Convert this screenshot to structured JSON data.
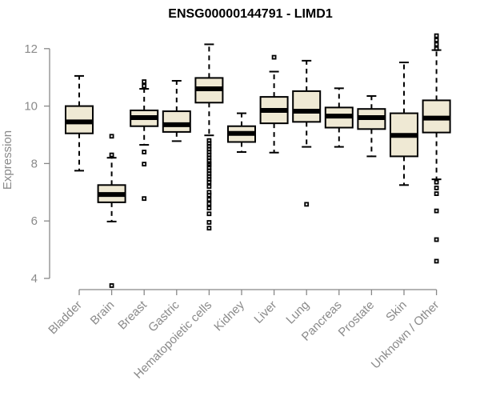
{
  "chart_data": {
    "type": "box",
    "title": "ENSG00000144791 - LIMD1",
    "xlabel": "",
    "ylabel": "Expression",
    "ylim": [
      3.6,
      12.4
    ],
    "yticks": [
      4,
      6,
      8,
      10,
      12
    ],
    "categories": [
      "Bladder",
      "Brain",
      "Breast",
      "Gastric",
      "Hematopoietic cells",
      "Kidney",
      "Liver",
      "Lung",
      "Pancreas",
      "Prostate",
      "Skin",
      "Unknown / Other"
    ],
    "series": [
      {
        "category": "Bladder",
        "whisker_low": 7.75,
        "q1": 9.05,
        "median": 9.45,
        "q3": 10.0,
        "whisker_high": 11.05,
        "outliers": []
      },
      {
        "category": "Brain",
        "whisker_low": 5.98,
        "q1": 6.65,
        "median": 6.92,
        "q3": 7.25,
        "whisker_high": 8.2,
        "outliers": [
          3.75,
          8.3,
          8.95
        ]
      },
      {
        "category": "Breast",
        "whisker_low": 8.65,
        "q1": 9.3,
        "median": 9.6,
        "q3": 9.85,
        "whisker_high": 10.6,
        "outliers": [
          6.78,
          7.98,
          8.4,
          10.7,
          10.85
        ]
      },
      {
        "category": "Gastric",
        "whisker_low": 8.78,
        "q1": 9.1,
        "median": 9.35,
        "q3": 9.82,
        "whisker_high": 10.88,
        "outliers": []
      },
      {
        "category": "Hematopoietic cells",
        "whisker_low": 8.98,
        "q1": 10.12,
        "median": 10.6,
        "q3": 10.98,
        "whisker_high": 12.15,
        "outliers": [
          5.75,
          5.95,
          6.25,
          6.45,
          6.6,
          6.75,
          6.9,
          7.0,
          7.2,
          7.35,
          7.45,
          7.55,
          7.65,
          7.75,
          7.85,
          7.95,
          8.0,
          8.1,
          8.2,
          8.3,
          8.4,
          8.5,
          8.6,
          8.7,
          8.8
        ]
      },
      {
        "category": "Kidney",
        "whisker_low": 8.4,
        "q1": 8.75,
        "median": 9.05,
        "q3": 9.3,
        "whisker_high": 9.75,
        "outliers": []
      },
      {
        "category": "Liver",
        "whisker_low": 8.38,
        "q1": 9.4,
        "median": 9.85,
        "q3": 10.32,
        "whisker_high": 11.2,
        "outliers": [
          11.7
        ]
      },
      {
        "category": "Lung",
        "whisker_low": 8.58,
        "q1": 9.45,
        "median": 9.82,
        "q3": 10.52,
        "whisker_high": 11.58,
        "outliers": [
          6.58
        ]
      },
      {
        "category": "Pancreas",
        "whisker_low": 8.58,
        "q1": 9.25,
        "median": 9.65,
        "q3": 9.95,
        "whisker_high": 10.62,
        "outliers": []
      },
      {
        "category": "Prostate",
        "whisker_low": 8.25,
        "q1": 9.2,
        "median": 9.6,
        "q3": 9.9,
        "whisker_high": 10.35,
        "outliers": []
      },
      {
        "category": "Skin",
        "whisker_low": 7.25,
        "q1": 8.25,
        "median": 8.98,
        "q3": 9.75,
        "whisker_high": 11.52,
        "outliers": []
      },
      {
        "category": "Unknown / Other",
        "whisker_low": 7.45,
        "q1": 9.08,
        "median": 9.58,
        "q3": 10.2,
        "whisker_high": 11.95,
        "outliers": [
          4.6,
          5.35,
          6.35,
          6.95,
          7.15,
          7.35,
          12.0,
          12.15,
          12.3,
          12.45
        ]
      }
    ],
    "grid": false,
    "colors": {
      "box_fill": "#efe9d4",
      "stroke": "#000000",
      "axis": "#888888",
      "text": "#8a8a8a"
    }
  }
}
